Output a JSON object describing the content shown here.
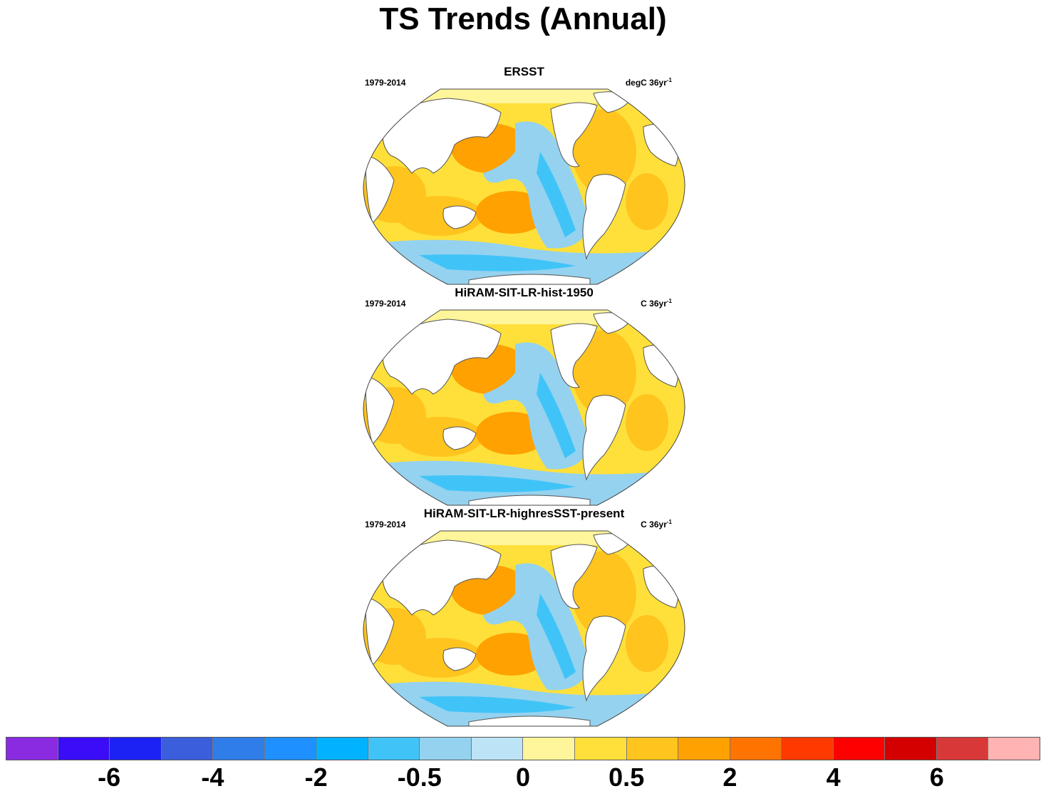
{
  "title": "TS Trends (Annual)",
  "panels": [
    {
      "title": "ERSST",
      "left_label": "1979-2014",
      "units": "degC 36yr",
      "units_sup": "-1"
    },
    {
      "title": "HiRAM-SIT-LR-hist-1950",
      "left_label": "1979-2014",
      "units": "C 36yr",
      "units_sup": "-1"
    },
    {
      "title": "HiRAM-SIT-LR-highresSST-present",
      "left_label": "1979-2014",
      "units": "C 36yr",
      "units_sup": "-1"
    }
  ],
  "colorbar": {
    "colors": [
      "#8a2be2",
      "#3a0cf7",
      "#1c22f3",
      "#3a5edc",
      "#2e7de8",
      "#1e90ff",
      "#00b2ff",
      "#40c4f8",
      "#95d2ef",
      "#bde3f6",
      "#fff59a",
      "#ffe03a",
      "#ffc41e",
      "#ffa100",
      "#ff7400",
      "#ff3a00",
      "#ff0000",
      "#d40000",
      "#d93838",
      "#ffb3b3"
    ],
    "tick_labels": [
      "-6",
      "-4",
      "-2",
      "-0.5",
      "0",
      "0.5",
      "2",
      "4",
      "6"
    ]
  },
  "palette": {
    "ocean_warm": "#ffc41e",
    "ocean_warmer": "#ffa100",
    "ocean_mild": "#ffe03a",
    "ocean_cool": "#95d2ef",
    "ocean_cooler": "#40c4f8",
    "land": "#ffffff"
  }
}
